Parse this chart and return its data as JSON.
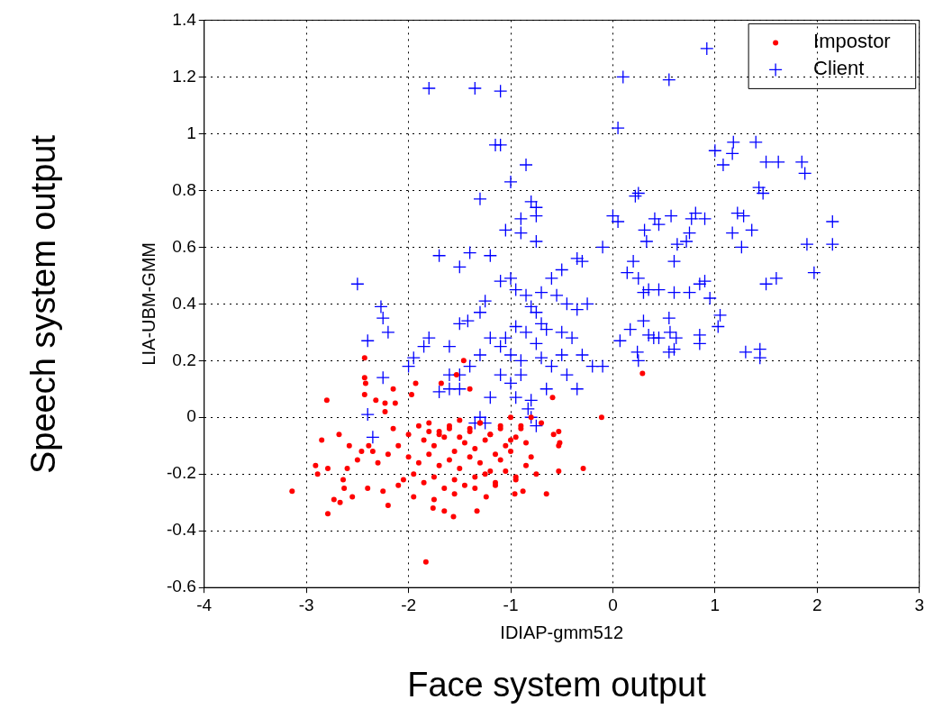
{
  "chart_data": {
    "type": "scatter",
    "xlabel": "IDIAP-gmm512",
    "ylabel": "LIA-UBM-GMM",
    "annotations": [
      "Speech system output",
      "Face system output"
    ],
    "xlim": [
      -4,
      3
    ],
    "xticks": [
      -4,
      -3,
      -2,
      -1,
      0,
      1,
      2,
      3
    ],
    "ylim": [
      -0.6,
      1.4
    ],
    "yticks": [
      -0.6,
      -0.4,
      -0.2,
      0,
      0.2,
      0.4,
      0.6,
      0.8,
      1,
      1.2,
      1.4
    ],
    "grid": true,
    "legend": "top right",
    "series": [
      {
        "name": "Impostor",
        "color": "#ff0000",
        "marker": "circle",
        "x": [
          -3.14,
          -2.79,
          -2.73,
          -2.67,
          -2.63,
          -2.64,
          -2.89,
          -2.91,
          -2.79,
          -2.85,
          -2.8,
          -2.43,
          -2.43,
          -2.42,
          -2.43,
          -2.68,
          -2.58,
          -2.6,
          -2.46,
          -2.39,
          -1.83,
          -1.56,
          -1.65,
          -1.76,
          -1.33,
          -1.24,
          -0.88,
          -0.96,
          -0.29,
          -0.53,
          -0.53,
          -0.53,
          -0.11,
          -0.59,
          -0.58,
          -0.52,
          -1.46,
          -1.53,
          -1.68,
          -1.4,
          -1.93,
          -2.15,
          -1.97,
          -2.32,
          -2.23,
          -2.13,
          -2.23,
          0.29,
          -1.8,
          -1.7,
          -1.6,
          -1.5,
          -1.4,
          -1.3,
          -1.2,
          -1.1,
          -1.0,
          -0.9,
          -1.85,
          -1.75,
          -1.65,
          -1.55,
          -1.45,
          -1.35,
          -1.25,
          -1.15,
          -1.05,
          -0.95,
          -0.85,
          -2.0,
          -1.9,
          -1.8,
          -1.7,
          -1.6,
          -1.5,
          -1.4,
          -1.3,
          -1.2,
          -1.1,
          -1.0,
          -2.1,
          -2.2,
          -2.3,
          -2.05,
          -1.95,
          -1.85,
          -1.75,
          -1.65,
          -1.55,
          -1.45,
          -1.35,
          -1.25,
          -1.15,
          -1.05,
          -0.95,
          -0.85,
          -0.8,
          -2.5,
          -2.35,
          -2.25,
          -2.15,
          -2.0,
          -1.9,
          -1.8,
          -1.7,
          -1.6,
          -1.5,
          -1.4,
          -1.3,
          -1.2,
          -1.1,
          -1.0,
          -0.9,
          -0.8,
          -0.7,
          -0.65,
          -2.55,
          -2.4,
          -2.2,
          -2.1,
          -1.95,
          -1.75,
          -1.55,
          -1.35,
          -1.15,
          -0.95,
          -0.75
        ],
        "values": [
          -0.26,
          -0.34,
          -0.29,
          -0.3,
          -0.25,
          -0.22,
          -0.2,
          -0.17,
          -0.18,
          -0.08,
          0.06,
          0.21,
          0.14,
          0.12,
          0.08,
          -0.06,
          -0.1,
          -0.18,
          -0.12,
          -0.1,
          -0.51,
          -0.35,
          -0.33,
          -0.32,
          -0.33,
          -0.28,
          -0.26,
          -0.27,
          -0.18,
          -0.19,
          -0.1,
          -0.05,
          0.0,
          0.07,
          -0.06,
          -0.09,
          0.2,
          0.15,
          0.12,
          0.1,
          0.12,
          0.1,
          0.08,
          0.06,
          0.05,
          0.05,
          0.02,
          0.155,
          -0.02,
          -0.05,
          -0.03,
          -0.01,
          -0.04,
          -0.02,
          -0.06,
          -0.03,
          0.0,
          -0.04,
          -0.08,
          -0.1,
          -0.07,
          -0.12,
          -0.09,
          -0.11,
          -0.08,
          -0.13,
          -0.1,
          -0.07,
          -0.09,
          -0.14,
          -0.16,
          -0.13,
          -0.17,
          -0.15,
          -0.18,
          -0.14,
          -0.16,
          -0.19,
          -0.15,
          -0.12,
          -0.1,
          -0.13,
          -0.16,
          -0.22,
          -0.2,
          -0.23,
          -0.21,
          -0.25,
          -0.22,
          -0.24,
          -0.21,
          -0.2,
          -0.23,
          -0.19,
          -0.21,
          -0.17,
          -0.14,
          -0.15,
          -0.12,
          -0.26,
          -0.04,
          -0.06,
          -0.03,
          -0.05,
          -0.06,
          -0.04,
          -0.07,
          -0.05,
          -0.02,
          -0.06,
          -0.04,
          -0.08,
          -0.03,
          0.0,
          -0.02,
          -0.27,
          -0.28,
          -0.25,
          -0.31,
          -0.24,
          -0.28,
          -0.29,
          -0.27,
          -0.25,
          -0.24,
          -0.22,
          -0.2
        ]
      },
      {
        "name": "Client",
        "color": "#0000ff",
        "marker": "cross",
        "x": [
          0.92,
          0.1,
          0.55,
          -1.8,
          -1.35,
          -1.1,
          0.05,
          -1.15,
          -1.1,
          -0.85,
          -1.0,
          -1.3,
          -0.8,
          -0.75,
          -0.9,
          -0.75,
          -1.05,
          -0.9,
          -0.75,
          -1.2,
          -1.4,
          -1.7,
          -1.5,
          -2.5,
          1.0,
          1.18,
          1.17,
          1.4,
          1.5,
          1.62,
          1.85,
          1.88,
          1.08,
          1.43,
          1.47,
          0.25,
          0.22,
          0.0,
          0.05,
          0.41,
          0.57,
          0.77,
          0.81,
          0.9,
          1.22,
          1.28,
          1.36,
          1.17,
          2.15,
          2.15,
          1.9,
          1.97,
          0.75,
          0.72,
          0.63,
          1.26,
          0.45,
          0.31,
          0.33,
          -0.1,
          0.2,
          0.6,
          1.5,
          1.6,
          0.9,
          0.85,
          0.95,
          1.05,
          0.14,
          0.25,
          0.35,
          0.3,
          0.45,
          0.6,
          0.75,
          1.03,
          0.85,
          0.85,
          0.62,
          0.6,
          0.55,
          1.3,
          1.44,
          1.44,
          0.3,
          0.35,
          0.4,
          0.45,
          0.55,
          0.56,
          0.17,
          0.24,
          0.07,
          -0.1,
          0.25,
          -2.4,
          -2.27,
          -2.25,
          -2.2,
          -2.25,
          -2.0,
          -1.95,
          -1.85,
          -1.8,
          -1.6,
          -1.5,
          -1.42,
          -1.3,
          -1.25,
          -1.1,
          -1.0,
          -0.95,
          -0.85,
          -0.8,
          -0.75,
          -0.7,
          -0.6,
          -0.5,
          -0.35,
          -0.3,
          -0.55,
          -0.45,
          -0.35,
          -0.25,
          -0.5,
          -0.4,
          -0.5,
          -0.6,
          -0.45,
          -0.3,
          -0.2,
          -0.35,
          -0.65,
          -0.8,
          -0.95,
          -1.0,
          -1.1,
          -1.2,
          -1.3,
          -1.4,
          -1.5,
          -1.1,
          -1.0,
          -0.9,
          -0.75,
          -0.7,
          -1.2,
          -1.5,
          -1.7,
          -1.3,
          -1.25,
          -1.35,
          -0.8,
          -0.75,
          -0.83,
          -2.4,
          -2.35,
          -1.05,
          -0.95,
          -0.85,
          -0.7,
          -0.65,
          -0.9,
          -1.6,
          -1.6
        ],
        "values": [
          1.3,
          1.2,
          1.19,
          1.16,
          1.16,
          1.15,
          1.02,
          0.96,
          0.96,
          0.89,
          0.83,
          0.77,
          0.76,
          0.74,
          0.7,
          0.71,
          0.66,
          0.65,
          0.62,
          0.57,
          0.58,
          0.57,
          0.53,
          0.47,
          0.94,
          0.97,
          0.93,
          0.97,
          0.9,
          0.9,
          0.9,
          0.86,
          0.89,
          0.81,
          0.79,
          0.79,
          0.78,
          0.71,
          0.69,
          0.7,
          0.71,
          0.7,
          0.72,
          0.7,
          0.72,
          0.71,
          0.66,
          0.65,
          0.69,
          0.61,
          0.61,
          0.51,
          0.65,
          0.62,
          0.61,
          0.6,
          0.68,
          0.66,
          0.62,
          0.6,
          0.55,
          0.55,
          0.47,
          0.49,
          0.48,
          0.47,
          0.42,
          0.36,
          0.51,
          0.49,
          0.45,
          0.44,
          0.45,
          0.44,
          0.44,
          0.32,
          0.29,
          0.26,
          0.28,
          0.24,
          0.23,
          0.23,
          0.24,
          0.21,
          0.34,
          0.29,
          0.28,
          0.28,
          0.35,
          0.3,
          0.31,
          0.23,
          0.27,
          0.18,
          0.2,
          0.27,
          0.39,
          0.35,
          0.3,
          0.14,
          0.18,
          0.21,
          0.25,
          0.28,
          0.25,
          0.33,
          0.34,
          0.37,
          0.41,
          0.48,
          0.49,
          0.45,
          0.43,
          0.39,
          0.37,
          0.44,
          0.49,
          0.52,
          0.56,
          0.55,
          0.43,
          0.4,
          0.38,
          0.4,
          0.3,
          0.28,
          0.22,
          0.18,
          0.15,
          0.22,
          0.18,
          0.1,
          0.1,
          0.06,
          0.07,
          0.22,
          0.25,
          0.28,
          0.22,
          0.18,
          0.15,
          0.15,
          0.12,
          0.2,
          0.26,
          0.21,
          0.07,
          0.1,
          0.09,
          0.0,
          -0.02,
          -0.02,
          0.0,
          -0.03,
          0.03,
          0.01,
          -0.07,
          0.28,
          0.32,
          0.3,
          0.33,
          0.31,
          0.15,
          0.15,
          0.1
        ]
      }
    ]
  }
}
